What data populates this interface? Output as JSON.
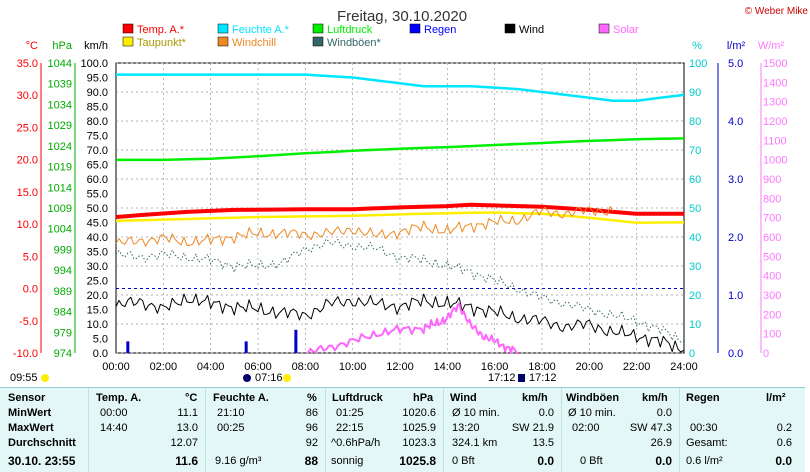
{
  "chart_data": {
    "type": "line",
    "title": "Freitag, 30.10.2020",
    "credit": "© Weber Mike",
    "legend": [
      {
        "label": "Temp. A.*",
        "color": "#ff0000"
      },
      {
        "label": "Feuchte A.*",
        "color": "#00e6ff"
      },
      {
        "label": "Luftdruck",
        "color": "#00ee00"
      },
      {
        "label": "Regen",
        "color": "#0000ff"
      },
      {
        "label": "Wind",
        "color": "#000000"
      },
      {
        "label": "Solar",
        "color": "#ff66ff"
      },
      {
        "label": "Taupunkt*",
        "color": "#ffee00"
      },
      {
        "label": "Windchill",
        "color": "#ee8822"
      },
      {
        "label": "Windböen*",
        "color": "#336666"
      }
    ],
    "axes": {
      "temp": {
        "unit": "°C",
        "color": "#ff0000",
        "ticks": [
          "35.0",
          "30.0",
          "25.0",
          "20.0",
          "15.0",
          "10.0",
          "5.0",
          "0.0",
          "-5.0",
          "-10.0"
        ]
      },
      "pressure": {
        "unit": "hPa",
        "color": "#00aa00",
        "ticks": [
          "1044",
          "1039",
          "1034",
          "1029",
          "1024",
          "1019",
          "1014",
          "1009",
          "1004",
          "999",
          "994",
          "989",
          "984",
          "979",
          "974"
        ]
      },
      "wind": {
        "unit": "km/h",
        "color": "#000000",
        "ticks": [
          "100.0",
          "95.0",
          "90.0",
          "85.0",
          "80.0",
          "75.0",
          "70.0",
          "65.0",
          "60.0",
          "55.0",
          "50.0",
          "45.0",
          "40.0",
          "35.0",
          "30.0",
          "25.0",
          "20.0",
          "15.0",
          "10.0",
          "5.0",
          "0.0"
        ]
      },
      "humidity": {
        "unit": "%",
        "color": "#00cccc",
        "ticks": [
          "100",
          "90",
          "80",
          "70",
          "60",
          "50",
          "40",
          "30",
          "20",
          "10",
          "0"
        ]
      },
      "rain": {
        "unit": "l/m²",
        "color": "#0000cc",
        "ticks": [
          "5.0",
          "4.0",
          "3.0",
          "2.0",
          "1.0",
          "0.0"
        ]
      },
      "solar": {
        "unit": "W/m²",
        "color": "#ff77ff",
        "ticks": [
          "1500",
          "1400",
          "1300",
          "1200",
          "1100",
          "1000",
          "900",
          "800",
          "700",
          "600",
          "500",
          "400",
          "300",
          "200",
          "100",
          "0"
        ]
      },
      "x_ticks": [
        "00:00",
        "02:00",
        "04:00",
        "06:00",
        "08:00",
        "10:00",
        "12:00",
        "14:00",
        "16:00",
        "18:00",
        "20:00",
        "22:00",
        "24:00"
      ]
    },
    "sun_events": {
      "left": "09:55",
      "rise": "07:16",
      "set": "17:12",
      "set2": "17:12"
    },
    "series": [
      {
        "name": "Feuchte A.*",
        "axis": "humidity",
        "color": "#00e6ff",
        "x": [
          0,
          4,
          8,
          10,
          12,
          13,
          15,
          17,
          19,
          21,
          22,
          24
        ],
        "values": [
          96,
          96,
          96,
          95,
          93,
          92,
          92,
          91,
          89,
          87,
          87,
          89
        ]
      },
      {
        "name": "Luftdruck",
        "axis": "pressure",
        "color": "#00ee00",
        "x": [
          0,
          2,
          4,
          6,
          8,
          10,
          12,
          14,
          16,
          18,
          20,
          22,
          24
        ],
        "values": [
          1020.6,
          1020.6,
          1020.9,
          1021.5,
          1022.2,
          1022.8,
          1023.3,
          1023.7,
          1024.2,
          1024.7,
          1025.2,
          1025.6,
          1025.8
        ]
      },
      {
        "name": "Temp. A.*",
        "axis": "temp",
        "color": "#ff0000",
        "x": [
          0,
          1,
          3,
          5,
          8,
          10,
          12,
          14,
          15,
          16,
          18,
          20,
          22,
          24
        ],
        "values": [
          11.1,
          11.4,
          11.9,
          12.2,
          12.3,
          12.3,
          12.6,
          12.8,
          13.0,
          12.9,
          12.7,
          12.2,
          11.6,
          11.6
        ]
      },
      {
        "name": "Taupunkt*",
        "axis": "temp",
        "color": "#ffee00",
        "x": [
          0,
          2,
          4,
          6,
          8,
          10,
          12,
          14,
          16,
          18,
          20,
          22,
          24
        ],
        "values": [
          10.5,
          10.7,
          10.9,
          11.1,
          11.2,
          11.3,
          11.5,
          11.7,
          11.8,
          11.6,
          11.0,
          10.2,
          10.3
        ]
      },
      {
        "name": "Windchill",
        "axis": "temp",
        "color": "#ee8822",
        "x": [
          0,
          1,
          2,
          3,
          4,
          5,
          6,
          7,
          8,
          9,
          10,
          11,
          12,
          13,
          14,
          15,
          16,
          17,
          18,
          19,
          20,
          21
        ],
        "values": [
          7.0,
          7.4,
          7.8,
          7.2,
          7.5,
          8.1,
          8.5,
          8.6,
          8.4,
          8.6,
          9.2,
          8.2,
          8.8,
          9.6,
          8.9,
          9.8,
          10.3,
          10.6,
          12.0,
          11.6,
          12.2,
          12.0
        ]
      },
      {
        "name": "Windböen*",
        "axis": "wind",
        "color": "#336666",
        "x": [
          0,
          1,
          2,
          3,
          4,
          5,
          6,
          7,
          8,
          9,
          10,
          11,
          12,
          13,
          14,
          15,
          16,
          17,
          18,
          19,
          20,
          21,
          22,
          23,
          24
        ],
        "values": [
          34,
          33,
          34,
          33,
          32,
          30,
          30,
          31,
          36,
          38,
          37,
          36,
          33,
          32,
          30,
          28,
          25,
          22,
          19,
          17,
          15,
          13,
          11,
          8,
          4
        ]
      },
      {
        "name": "Wind",
        "axis": "wind",
        "color": "#000000",
        "x": [
          0,
          1,
          2,
          3,
          4,
          5,
          6,
          7,
          8,
          9,
          10,
          11,
          12,
          13,
          14,
          15,
          16,
          17,
          18,
          19,
          20,
          21,
          22,
          23,
          24
        ],
        "values": [
          16,
          18,
          15,
          19,
          17,
          16,
          15,
          14,
          13,
          17,
          18,
          17,
          16,
          18,
          17,
          16,
          14,
          12,
          11,
          9,
          10,
          7,
          6,
          4,
          1
        ]
      },
      {
        "name": "Solar",
        "axis": "solar",
        "color": "#ff66ff",
        "x": [
          8.1,
          9,
          10,
          11,
          12,
          13,
          13.5,
          14,
          14.5,
          15,
          15.5,
          16,
          16.5,
          17
        ],
        "values": [
          0,
          30,
          60,
          100,
          120,
          130,
          150,
          180,
          250,
          140,
          90,
          60,
          30,
          0
        ]
      },
      {
        "name": "Regen",
        "axis": "rain",
        "color": "#0000cc",
        "x": [
          0.5,
          5.5,
          7.6
        ],
        "values": [
          0.2,
          0.2,
          0.4
        ]
      }
    ]
  },
  "stats": {
    "rows": [
      "Sensor",
      "MinWert",
      "MaxWert",
      "Durchschnitt"
    ],
    "footer_label": "30.10. 23:55",
    "groups": {
      "temp": {
        "title": "Temp. A.",
        "unit": "°C",
        "min_time": "00:00",
        "min": "11.1",
        "max_time": "14:40",
        "max": "13.0",
        "avg": "12.07",
        "current": "11.6"
      },
      "hum": {
        "title": "Feuchte A.",
        "unit": "%",
        "min_time": "21:10",
        "min": "86",
        "max_time": "00:25",
        "max": "96",
        "avg": "92",
        "abs": "9.16 g/m³",
        "current": "88"
      },
      "press": {
        "title": "Luftdruck",
        "unit": "hPa",
        "min_time": "01:25",
        "min": "1020.6",
        "max_time": "22:15",
        "max": "1025.9",
        "trend": "^0.6hPa/h",
        "avg": "1023.3",
        "forecast": "sonnig",
        "current": "1025.8"
      },
      "wind": {
        "title": "Wind",
        "unit": "km/h",
        "r1a": "Ø 10 min.",
        "r1b": "0.0",
        "r2a": "13:20",
        "r2b": "SW 21.9",
        "r3a": "324.1 km",
        "r3b": "13.5",
        "r4a": "0 Bft",
        "r4b": "0.0"
      },
      "gust": {
        "title": "Windböen",
        "unit": "km/h",
        "r1a": "Ø 10 min.",
        "r1b": "0.0",
        "r2a": "02:00",
        "r2b": "SW 47.3",
        "r3b": "26.9",
        "r4a": "0 Bft",
        "r4b": "0.0"
      },
      "rain": {
        "title": "Regen",
        "unit": "l/m²",
        "r2a": "00:30",
        "r2b": "0.2",
        "r3a": "Gesamt:",
        "r3b": "0.6",
        "r4a": "0.6 l/m²",
        "r4b": "0.0"
      }
    }
  }
}
